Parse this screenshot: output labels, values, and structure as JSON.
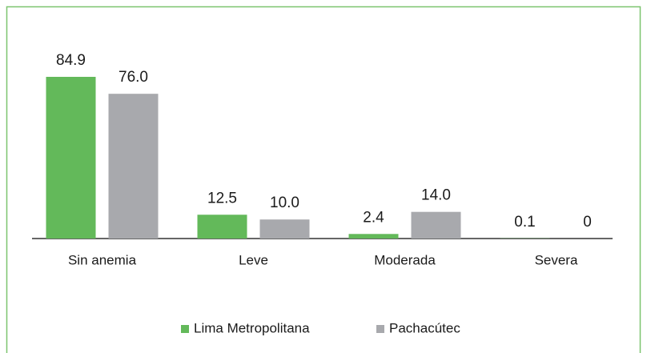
{
  "chart_data": {
    "type": "bar",
    "categories": [
      "Sin anemia",
      "Leve",
      "Moderada",
      "Severa"
    ],
    "series": [
      {
        "name": "Lima Metropolitana",
        "color": "#63b95a",
        "values": [
          84.9,
          12.5,
          2.4,
          0.1
        ],
        "value_labels": [
          "84.9",
          "12.5",
          "2.4",
          "0.1"
        ]
      },
      {
        "name": "Pachacútec",
        "color": "#a8a9ad",
        "values": [
          76.0,
          10.0,
          14.0,
          0
        ],
        "value_labels": [
          "76.0",
          "10.0",
          "14.0",
          "0"
        ]
      }
    ]
  }
}
